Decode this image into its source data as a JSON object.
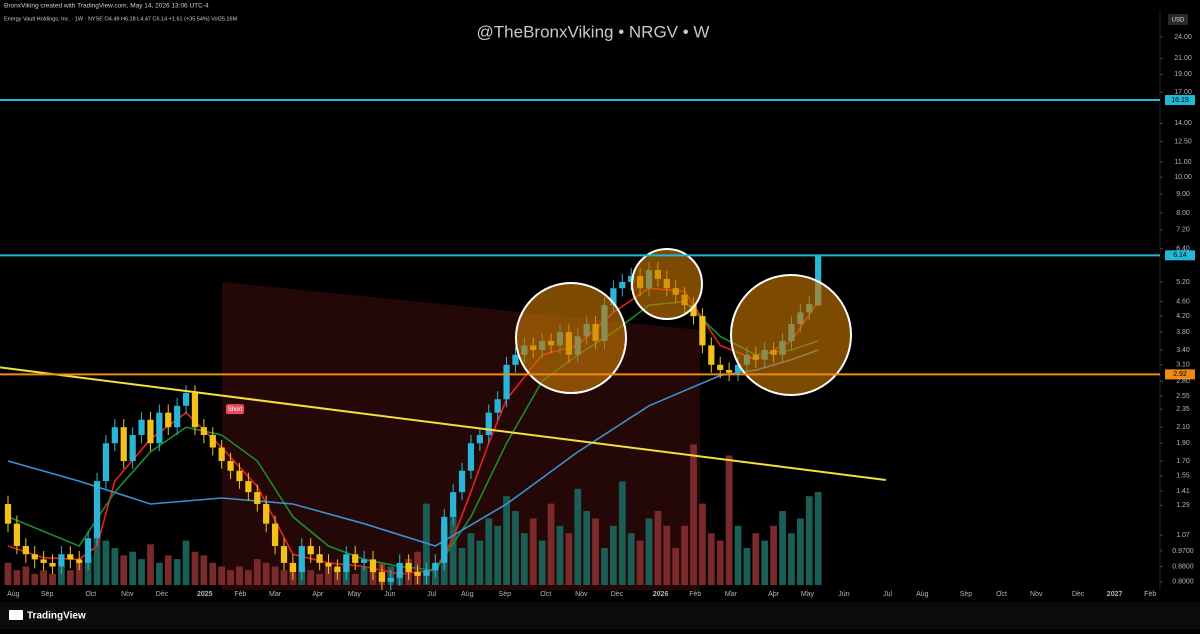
{
  "chart_data": {
    "type": "candlestick",
    "credit": "BronxViking created with TradingView.com, May 14, 2026 13:06 UTC-4",
    "subtitle": "Energy Vault Holdings, Inc. · 1W · NYSE  O4.49 H6.18 L4.47 C6.14 +1.61 (+35.54%) Vol25.16M",
    "title": "@TheBronxViking  •  NRGV  •  W",
    "currency": "USD",
    "brand": "TradingView",
    "log_y": true,
    "up_color": "#2ab4d6",
    "down_color": "#f2c21b",
    "volume_up_color": "#1b5e55",
    "volume_down_color": "#7a2a2a",
    "ylim": [
      0.76,
      28.4
    ],
    "xlim": [
      -0.9,
      129.4
    ],
    "yticks": [
      {
        "value": 24,
        "label": "24.00"
      },
      {
        "value": 21,
        "label": "21.00"
      },
      {
        "value": 19,
        "label": "19.00"
      },
      {
        "value": 17,
        "label": "17.00"
      },
      {
        "value": 14,
        "label": "14.00"
      },
      {
        "value": 12.5,
        "label": "12.50"
      },
      {
        "value": 11,
        "label": "11.00"
      },
      {
        "value": 10,
        "label": "10.00"
      },
      {
        "value": 9,
        "label": "9.00"
      },
      {
        "value": 8,
        "label": "8.00"
      },
      {
        "value": 7.2,
        "label": "7.20"
      },
      {
        "value": 6.4,
        "label": "6.40"
      },
      {
        "value": 5.2,
        "label": "5.20"
      },
      {
        "value": 4.6,
        "label": "4.60"
      },
      {
        "value": 4.2,
        "label": "4.20"
      },
      {
        "value": 3.8,
        "label": "3.80"
      },
      {
        "value": 3.4,
        "label": "3.40"
      },
      {
        "value": 3.1,
        "label": "3.10"
      },
      {
        "value": 2.8,
        "label": "2.80"
      },
      {
        "value": 2.55,
        "label": "2.55"
      },
      {
        "value": 2.35,
        "label": "2.35"
      },
      {
        "value": 2.1,
        "label": "2.10"
      },
      {
        "value": 1.9,
        "label": "1.90"
      },
      {
        "value": 1.7,
        "label": "1.70"
      },
      {
        "value": 1.55,
        "label": "1.55"
      },
      {
        "value": 1.41,
        "label": "1.41"
      },
      {
        "value": 1.29,
        "label": "1.29"
      },
      {
        "value": 1.07,
        "label": "1.07"
      },
      {
        "value": 0.97,
        "label": "0.9700"
      },
      {
        "value": 0.88,
        "label": "0.8800"
      },
      {
        "value": 0.8,
        "label": "0.8000"
      }
    ],
    "xticks": [
      {
        "value": 0.6,
        "label": "Aug"
      },
      {
        "value": 4.4,
        "label": "Sep"
      },
      {
        "value": 9.3,
        "label": "Oct"
      },
      {
        "value": 13.4,
        "label": "Nov"
      },
      {
        "value": 17.3,
        "label": "Dec"
      },
      {
        "value": 22.1,
        "label": "2025"
      },
      {
        "value": 26.1,
        "label": "Feb"
      },
      {
        "value": 30,
        "label": "Mar"
      },
      {
        "value": 34.8,
        "label": "Apr"
      },
      {
        "value": 38.9,
        "label": "May"
      },
      {
        "value": 42.9,
        "label": "Jun"
      },
      {
        "value": 47.6,
        "label": "Jul"
      },
      {
        "value": 51.6,
        "label": "Aug"
      },
      {
        "value": 55.8,
        "label": "Sep"
      },
      {
        "value": 60.4,
        "label": "Oct"
      },
      {
        "value": 64.4,
        "label": "Nov"
      },
      {
        "value": 68.4,
        "label": "Dec"
      },
      {
        "value": 73.3,
        "label": "2026"
      },
      {
        "value": 77.2,
        "label": "Feb"
      },
      {
        "value": 81.2,
        "label": "Mar"
      },
      {
        "value": 86,
        "label": "Apr"
      },
      {
        "value": 89.8,
        "label": "May"
      },
      {
        "value": 93.9,
        "label": "Jun"
      },
      {
        "value": 98.8,
        "label": "Jul"
      },
      {
        "value": 102.7,
        "label": "Aug"
      },
      {
        "value": 107.6,
        "label": "Sep"
      },
      {
        "value": 111.6,
        "label": "Oct"
      },
      {
        "value": 115.5,
        "label": "Nov"
      },
      {
        "value": 120.2,
        "label": "Dec"
      },
      {
        "value": 124.3,
        "label": "2027"
      },
      {
        "value": 128.3,
        "label": "Feb"
      }
    ],
    "open": [
      1.3,
      1.15,
      1.0,
      0.95,
      0.92,
      0.9,
      0.88,
      0.95,
      0.92,
      0.9,
      1.05,
      1.5,
      1.9,
      2.1,
      1.7,
      2.0,
      2.2,
      1.9,
      2.3,
      2.1,
      2.4,
      2.6,
      2.1,
      2.0,
      1.85,
      1.7,
      1.6,
      1.5,
      1.4,
      1.3,
      1.15,
      1.0,
      0.9,
      0.85,
      1.0,
      0.95,
      0.9,
      0.88,
      0.85,
      0.95,
      0.9,
      0.92,
      0.85,
      0.8,
      0.82,
      0.9,
      0.85,
      0.83,
      0.86,
      0.9,
      1.2,
      1.4,
      1.6,
      1.9,
      2.0,
      2.3,
      2.5,
      3.1,
      3.3,
      3.5,
      3.4,
      3.6,
      3.5,
      3.8,
      3.3,
      3.7,
      4.0,
      3.6,
      4.5,
      5.0,
      5.2,
      5.4,
      5.0,
      5.6,
      5.3,
      5.0,
      4.8,
      4.5,
      4.2,
      3.5,
      3.1,
      3.0,
      2.95,
      3.1,
      3.3,
      3.2,
      3.4,
      3.3,
      3.6,
      4.0,
      4.3,
      4.49
    ],
    "high": [
      1.37,
      1.21,
      1.05,
      1.0,
      0.97,
      0.95,
      1.0,
      1.0,
      0.97,
      1.1,
      1.58,
      2.0,
      2.21,
      2.21,
      2.1,
      2.31,
      2.31,
      2.42,
      2.42,
      2.52,
      2.73,
      2.73,
      2.21,
      2.1,
      1.94,
      1.79,
      1.68,
      1.58,
      1.47,
      1.37,
      1.21,
      1.05,
      0.95,
      1.05,
      1.05,
      1.0,
      0.95,
      0.92,
      1.0,
      1.0,
      0.97,
      0.97,
      0.89,
      0.86,
      0.95,
      0.95,
      0.89,
      0.9,
      0.95,
      1.26,
      1.47,
      1.68,
      2.0,
      2.1,
      2.42,
      2.63,
      3.26,
      3.47,
      3.68,
      3.68,
      3.78,
      3.78,
      3.99,
      3.99,
      3.89,
      4.2,
      4.2,
      4.73,
      5.25,
      5.46,
      5.67,
      5.67,
      5.88,
      5.88,
      5.57,
      5.25,
      5.04,
      4.73,
      4.41,
      3.68,
      3.26,
      3.15,
      3.26,
      3.47,
      3.47,
      3.57,
      3.57,
      3.78,
      4.2,
      4.52,
      4.76,
      6.18
    ],
    "low": [
      1.09,
      0.95,
      0.9,
      0.87,
      0.86,
      0.84,
      0.84,
      0.87,
      0.86,
      0.86,
      1.0,
      1.43,
      1.81,
      1.62,
      1.62,
      1.9,
      1.81,
      1.81,
      2.0,
      2.0,
      2.28,
      2.0,
      1.9,
      1.76,
      1.62,
      1.52,
      1.43,
      1.33,
      1.24,
      1.09,
      0.95,
      0.86,
      0.81,
      0.81,
      0.9,
      0.86,
      0.84,
      0.81,
      0.81,
      0.86,
      0.86,
      0.81,
      0.76,
      0.76,
      0.78,
      0.81,
      0.79,
      0.79,
      0.82,
      0.86,
      1.14,
      1.33,
      1.52,
      1.81,
      1.9,
      2.19,
      2.38,
      2.95,
      3.14,
      3.23,
      3.23,
      3.33,
      3.33,
      3.14,
      3.14,
      3.52,
      3.42,
      3.42,
      4.28,
      4.75,
      4.94,
      4.75,
      4.75,
      5.04,
      4.75,
      4.56,
      4.28,
      3.99,
      3.33,
      2.95,
      2.85,
      2.8,
      2.8,
      2.95,
      3.04,
      3.04,
      3.14,
      3.14,
      3.42,
      3.8,
      4.09,
      4.47
    ],
    "close": [
      1.15,
      1.0,
      0.95,
      0.92,
      0.9,
      0.88,
      0.95,
      0.92,
      0.9,
      1.05,
      1.5,
      1.9,
      2.1,
      1.7,
      2.0,
      2.2,
      1.9,
      2.3,
      2.1,
      2.4,
      2.6,
      2.1,
      2.0,
      1.85,
      1.7,
      1.6,
      1.5,
      1.4,
      1.3,
      1.15,
      1.0,
      0.9,
      0.85,
      1.0,
      0.95,
      0.9,
      0.88,
      0.85,
      0.95,
      0.9,
      0.92,
      0.85,
      0.8,
      0.82,
      0.9,
      0.85,
      0.83,
      0.86,
      0.9,
      1.2,
      1.4,
      1.6,
      1.9,
      2.0,
      2.3,
      2.5,
      3.1,
      3.3,
      3.5,
      3.4,
      3.6,
      3.5,
      3.8,
      3.3,
      3.7,
      4.0,
      3.6,
      4.5,
      5.0,
      5.2,
      5.4,
      5.0,
      5.6,
      5.3,
      5.0,
      4.8,
      4.5,
      4.2,
      3.5,
      3.1,
      3.0,
      2.95,
      3.1,
      3.3,
      3.2,
      3.4,
      3.3,
      3.6,
      4.0,
      4.3,
      4.53,
      6.14
    ],
    "volume": [
      6,
      4,
      5,
      3,
      4,
      3,
      5,
      4,
      6,
      8,
      14,
      12,
      10,
      8,
      9,
      7,
      11,
      6,
      8,
      7,
      12,
      9,
      8,
      6,
      5,
      4,
      5,
      4,
      7,
      6,
      5,
      4,
      6,
      5,
      4,
      3,
      5,
      4,
      6,
      3,
      5,
      4,
      6,
      5,
      3,
      7,
      9,
      22,
      6,
      16,
      20,
      10,
      14,
      12,
      18,
      16,
      24,
      20,
      14,
      18,
      12,
      22,
      16,
      14,
      26,
      20,
      18,
      10,
      16,
      28,
      14,
      12,
      18,
      20,
      16,
      10,
      16,
      38,
      22,
      14,
      12,
      35,
      16,
      10,
      14,
      12,
      16,
      20,
      14,
      18,
      24,
      25.16
    ],
    "moving_averages": [
      {
        "color": "#e8201f",
        "x": [
          0,
          4,
          8,
          10,
          12,
          16,
          20,
          24,
          28,
          32,
          36,
          40,
          44,
          48,
          50,
          52,
          54,
          56,
          60,
          64,
          68,
          72,
          76,
          80,
          84,
          88,
          91
        ],
        "values": [
          1.0,
          0.93,
          0.92,
          1.0,
          1.5,
          1.95,
          2.3,
          1.85,
          1.45,
          0.95,
          0.9,
          0.88,
          0.84,
          0.86,
          1.05,
          1.4,
          1.9,
          2.5,
          3.3,
          3.5,
          4.3,
          5.0,
          4.9,
          3.5,
          3.2,
          3.6,
          4.6
        ]
      },
      {
        "color": "#1e8a2e",
        "x": [
          0,
          8,
          12,
          16,
          20,
          24,
          28,
          32,
          36,
          40,
          44,
          48,
          52,
          56,
          60,
          64,
          68,
          72,
          76,
          80,
          84,
          88,
          91
        ],
        "values": [
          1.2,
          1.0,
          1.4,
          1.8,
          2.1,
          2.0,
          1.7,
          1.2,
          1.0,
          0.92,
          0.88,
          0.86,
          1.2,
          1.9,
          2.8,
          3.3,
          3.8,
          4.5,
          4.6,
          3.7,
          3.3,
          3.4,
          3.6
        ]
      },
      {
        "color": "#3d8fd1",
        "x": [
          0,
          8,
          16,
          24,
          32,
          40,
          48,
          56,
          64,
          72,
          80,
          84,
          88,
          91
        ],
        "values": [
          1.7,
          1.5,
          1.3,
          1.35,
          1.3,
          1.15,
          1.0,
          1.3,
          1.8,
          2.4,
          2.9,
          3.0,
          3.2,
          3.4
        ]
      }
    ],
    "trendline": {
      "color": "#f3e03b",
      "x": [
        -0.9,
        98.6
      ],
      "values": [
        3.05,
        1.51
      ]
    },
    "levels": [
      {
        "value": 16.19,
        "label": "16.19",
        "color": "#22b8d6"
      },
      {
        "value": 6.14,
        "label": "6.14",
        "color": "#22b8d6"
      },
      {
        "value": 2.92,
        "label": "2.92",
        "color": "#f08a12"
      }
    ],
    "annotations": [
      {
        "text": "Short",
        "x": 25.5,
        "y": 2.35
      }
    ]
  }
}
